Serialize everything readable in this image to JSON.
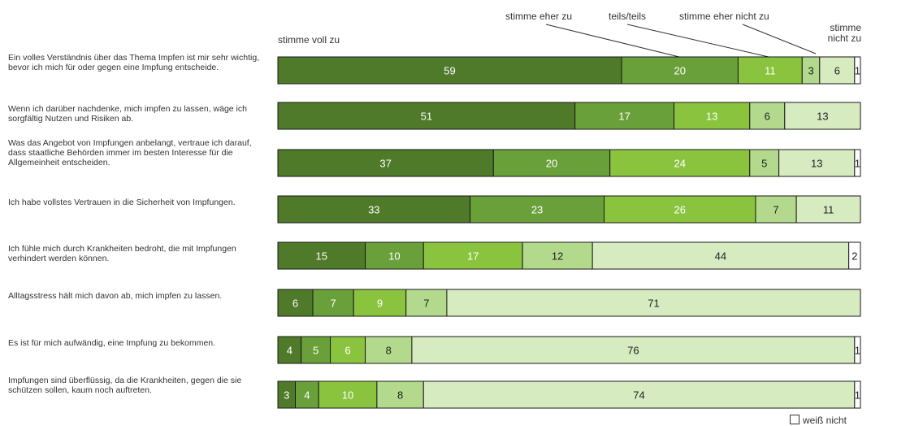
{
  "chart_data": {
    "type": "bar",
    "orientation": "horizontal",
    "stacked": true,
    "categories": [
      "Ein volles Verständnis über das Thema Impfen ist mir sehr wichtig, bevor ich mich für oder gegen eine Impfung entscheide.",
      "Wenn ich darüber nachdenke, mich impfen zu lassen, wäge ich sorgfältig Nutzen und Risiken ab.",
      "Was das Angebot von Impfungen anbelangt, vertraue ich darauf, dass staatliche Behörden immer im besten Interesse für die Allgemeinheit entscheiden.",
      "Ich habe vollstes Vertrauen in die Sicherheit von Impfungen.",
      "Ich fühle mich durch Krankheiten bedroht, die mit Impfungen verhindert werden können.",
      "Alltagsstress hält mich davon ab, mich impfen zu lassen.",
      "Es ist für mich aufwändig, eine Impfung zu bekommen.",
      "Impfungen sind überflüssig, da die Krankheiten, gegen die sie schützen sollen, kaum noch auftreten."
    ],
    "series": [
      {
        "name": "stimme voll zu",
        "color": "#4f7a2a",
        "values": [
          59,
          51,
          37,
          33,
          15,
          6,
          4,
          3
        ]
      },
      {
        "name": "stimme eher zu",
        "color": "#6aa03a",
        "values": [
          20,
          17,
          20,
          23,
          10,
          7,
          5,
          4
        ]
      },
      {
        "name": "teils/teils",
        "color": "#8ac43f",
        "values": [
          11,
          13,
          24,
          26,
          17,
          9,
          6,
          10
        ]
      },
      {
        "name": "stimme eher nicht zu",
        "color": "#b3da8c",
        "values": [
          3,
          6,
          5,
          7,
          12,
          7,
          8,
          8
        ]
      },
      {
        "name": "stimme nicht zu",
        "color": "#d6ebc0",
        "values": [
          6,
          13,
          13,
          11,
          44,
          71,
          76,
          74
        ]
      },
      {
        "name": "weiß nicht",
        "color": "#ffffff",
        "values": [
          1,
          0,
          1,
          0,
          2,
          0,
          1,
          1
        ]
      }
    ],
    "xlim": [
      0,
      100
    ],
    "legend": "top"
  }
}
